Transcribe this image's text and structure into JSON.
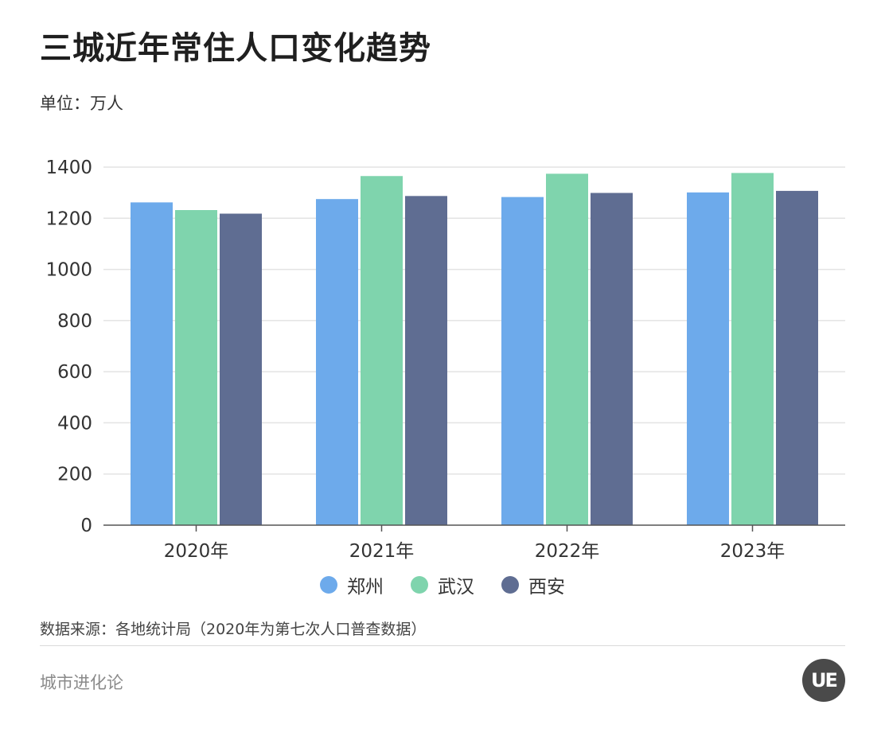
{
  "header": {
    "title": "三城近年常住人口变化趋势",
    "unit": "单位：万人"
  },
  "chart_data": {
    "type": "bar",
    "categories": [
      "2020年",
      "2021年",
      "2022年",
      "2023年"
    ],
    "series": [
      {
        "name": "郑州",
        "color": "#6daaeb",
        "values": [
          1262,
          1275,
          1283,
          1301
        ]
      },
      {
        "name": "武汉",
        "color": "#7fd4ad",
        "values": [
          1232,
          1365,
          1374,
          1377
        ]
      },
      {
        "name": "西安",
        "color": "#5f6d92",
        "values": [
          1218,
          1287,
          1299,
          1307
        ]
      }
    ],
    "yticks": [
      "0",
      "200",
      "400",
      "600",
      "800",
      "1000",
      "1200",
      "1400"
    ],
    "ylim": [
      0,
      1400
    ],
    "grid": true,
    "legend_position": "bottom-center"
  },
  "footer": {
    "source": "数据来源：各地统计局（2020年为第七次人口普查数据）",
    "brand": "城市进化论",
    "logo_text": "UE"
  }
}
